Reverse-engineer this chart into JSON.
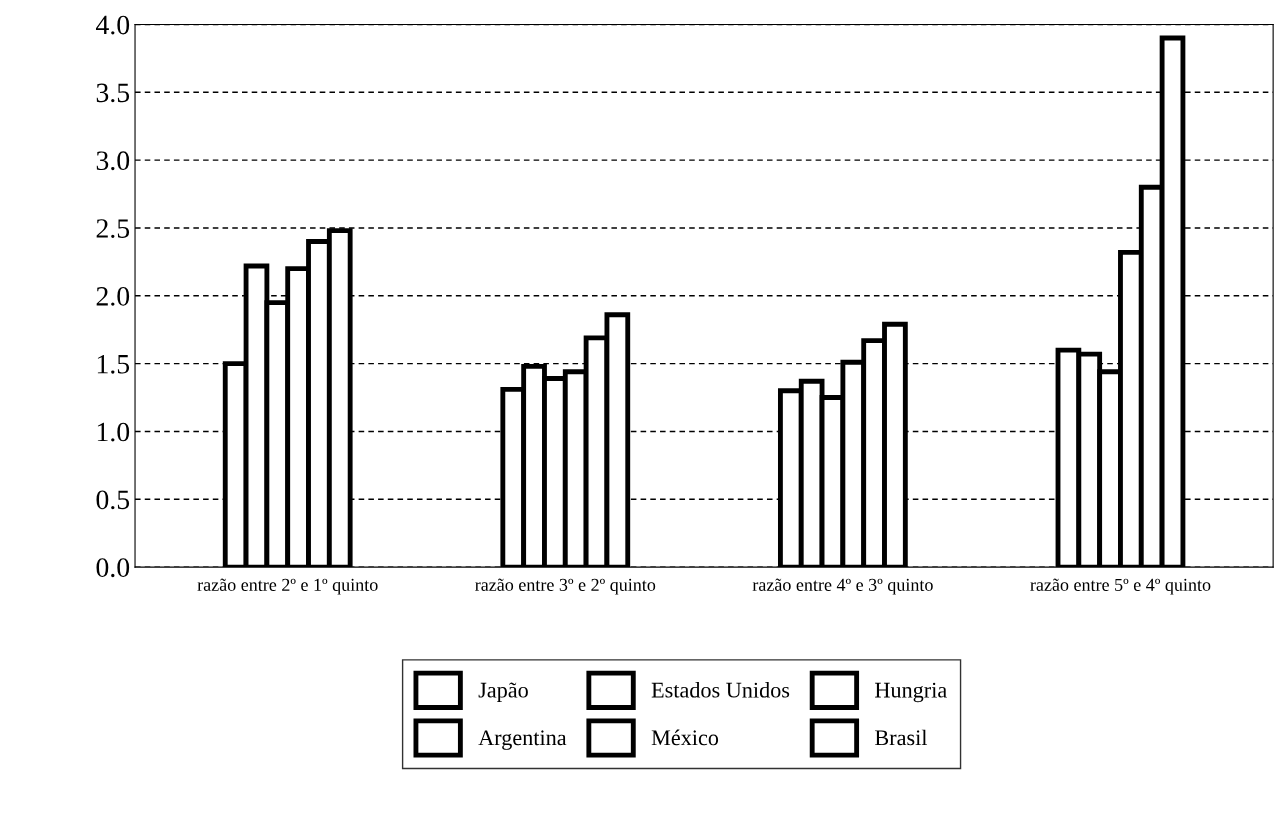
{
  "chart_data": {
    "type": "bar",
    "categories": [
      "razão entre 2º e 1º quinto",
      "razão entre 3º e 2º quinto",
      "razão entre 4º e 3º quinto",
      "razão entre 5º e 4º quinto"
    ],
    "series": [
      {
        "name": "Japão",
        "color": "#000000",
        "values": [
          1.5,
          1.31,
          1.3,
          1.6
        ]
      },
      {
        "name": "Estados Unidos",
        "color": "#000000",
        "values": [
          2.22,
          1.48,
          1.37,
          1.57
        ]
      },
      {
        "name": "Hungria",
        "color": "#000000",
        "values": [
          1.95,
          1.39,
          1.25,
          1.44
        ]
      },
      {
        "name": "Argentina",
        "color": "#000000",
        "values": [
          2.2,
          1.44,
          1.51,
          2.32
        ]
      },
      {
        "name": "México",
        "color": "#000000",
        "values": [
          2.4,
          1.69,
          1.67,
          2.8
        ]
      },
      {
        "name": "Brasil",
        "color": "#000000",
        "values": [
          2.48,
          1.86,
          1.79,
          3.9
        ]
      }
    ],
    "ylim": [
      0,
      4.0
    ],
    "yticks": [
      {
        "value": 0,
        "label": "0.0"
      },
      {
        "value": 0.5,
        "label": "0.5"
      },
      {
        "value": 1.0,
        "label": "1.0"
      },
      {
        "value": 1.5,
        "label": "1.5"
      },
      {
        "value": 2.0,
        "label": "2.0"
      },
      {
        "value": 2.5,
        "label": "2.5"
      },
      {
        "value": 3.0,
        "label": "3.0"
      },
      {
        "value": 3.5,
        "label": "3.5"
      },
      {
        "value": 4.0,
        "label": "4.0"
      }
    ],
    "grid": "y",
    "line_style": "dashed",
    "legend": "bottom"
  }
}
